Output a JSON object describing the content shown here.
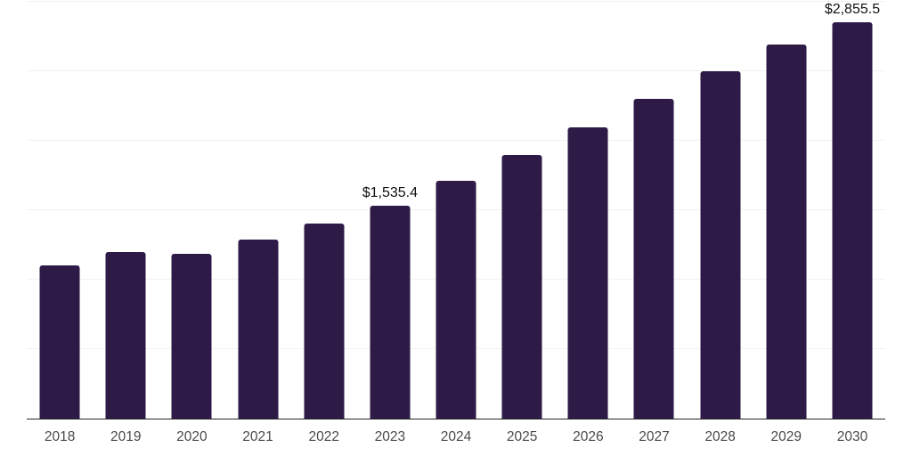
{
  "chart_data": {
    "type": "bar",
    "categories": [
      "2018",
      "2019",
      "2020",
      "2021",
      "2022",
      "2023",
      "2024",
      "2025",
      "2026",
      "2027",
      "2028",
      "2029",
      "2030"
    ],
    "values": [
      1103,
      1199,
      1186,
      1288,
      1402,
      1535.4,
      1710,
      1895,
      2094,
      2301,
      2500,
      2692,
      2855.5
    ],
    "data_labels": {
      "2023": "$1,535.4",
      "2030": "$2,855.5"
    },
    "title": "",
    "xlabel": "",
    "ylabel": "",
    "ylim": [
      0,
      3000
    ],
    "gridline_step": 500,
    "grid": true,
    "legend": "none",
    "colors": {
      "bar": "#2e1a47",
      "gridline": "#f1f1f2",
      "axis_line": "#262626",
      "tick_label": "#4a4a4a",
      "data_label": "#111111",
      "background": "#ffffff"
    }
  }
}
